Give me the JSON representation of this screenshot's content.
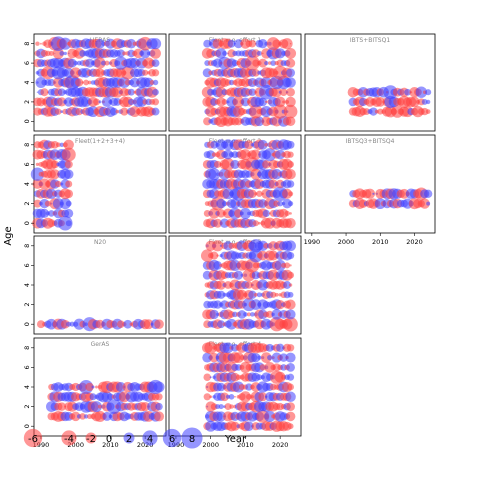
{
  "chart_data": {
    "type": "scatter",
    "subtype": "bubble-residuals-facet",
    "xlabel": "Year",
    "ylabel": "Age",
    "xlim": [
      1988,
      2026
    ],
    "ylim": [
      -1,
      9
    ],
    "xticks": [
      1990,
      2000,
      2010,
      2020
    ],
    "yticks": [
      0,
      2,
      4,
      6,
      8
    ],
    "colors": {
      "positive": "#4040ff",
      "negative": "#ff4040"
    },
    "legend": {
      "placement": "bottom",
      "values": [
        -6,
        -4,
        -2,
        0,
        2,
        4,
        6,
        8
      ],
      "labels": [
        "-6",
        "-4",
        "-2",
        "0",
        "2",
        "4",
        "6",
        "8"
      ]
    },
    "panels": [
      {
        "id": "HERAS",
        "title": "HERAS",
        "years": [
          1989,
          2023
        ],
        "ages": [
          1,
          2,
          3,
          4,
          5,
          6,
          7,
          8
        ],
        "seed": 11
      },
      {
        "id": "fleet-wo-effort-1",
        "title": "Fleet w.o. effort 1",
        "years": [
          1999,
          2023
        ],
        "ages": [
          0,
          1,
          2,
          3,
          4,
          5,
          6,
          7,
          8
        ],
        "seed": 23
      },
      {
        "id": "ibts-bitsq1",
        "title": "IBTS+BITSQ1",
        "years": [
          2002,
          2024
        ],
        "ages": [
          1,
          2,
          3
        ],
        "seed": 37
      },
      {
        "id": "fleet-1234",
        "title": "Fleet(1+2+3+4)",
        "years": [
          1989,
          1998
        ],
        "ages": [
          0,
          1,
          2,
          3,
          4,
          5,
          6,
          7,
          8
        ],
        "seed": 41
      },
      {
        "id": "fleet-wo-effort-2",
        "title": "Fleet w.o. effort 2",
        "years": [
          1999,
          2023
        ],
        "ages": [
          0,
          1,
          2,
          3,
          4,
          5,
          6,
          7,
          8
        ],
        "seed": 53
      },
      {
        "id": "ibts-bitsq3",
        "title": "IBTSQ3+BITSQ4",
        "years": [
          2002,
          2024
        ],
        "ages": [
          2,
          3
        ],
        "seed": 67
      },
      {
        "id": "n20",
        "title": "N20",
        "years": [
          1990,
          2024
        ],
        "ages": [
          0
        ],
        "seed": 71
      },
      {
        "id": "fleet-wo-effort-3",
        "title": "Fleet w.o. effort 3",
        "years": [
          1999,
          2023
        ],
        "ages": [
          0,
          1,
          2,
          3,
          4,
          5,
          6,
          7,
          8
        ],
        "seed": 83
      },
      null,
      {
        "id": "geras",
        "title": "GerAS",
        "years": [
          1993,
          2024
        ],
        "ages": [
          1,
          2,
          3,
          4
        ],
        "seed": 97
      },
      {
        "id": "fleet-wo-effort-4",
        "title": "Fleet w.o. effort 4",
        "years": [
          1999,
          2023
        ],
        "ages": [
          0,
          1,
          2,
          3,
          4,
          5,
          6,
          7,
          8
        ],
        "seed": 101
      },
      null
    ]
  }
}
